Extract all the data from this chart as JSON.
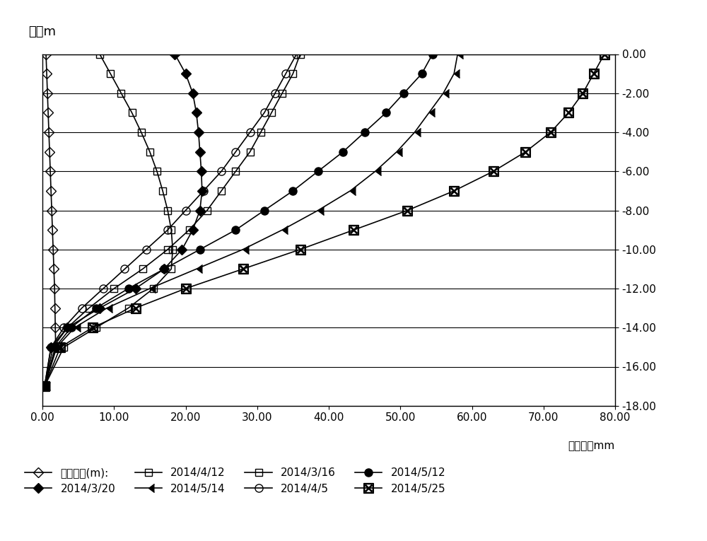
{
  "ylabel_left": "深度m",
  "xlabel": "相对位移mm",
  "ylim": [
    -18.0,
    0.0
  ],
  "xlim": [
    0.0,
    80.0
  ],
  "yticks": [
    0.0,
    -2.0,
    -4.0,
    -6.0,
    -8.0,
    -10.0,
    -12.0,
    -14.0,
    -16.0,
    -18.0
  ],
  "xticks": [
    0.0,
    10.0,
    20.0,
    30.0,
    40.0,
    50.0,
    60.0,
    70.0,
    80.0
  ],
  "depth": [
    0,
    -1,
    -2,
    -3,
    -4,
    -5,
    -6,
    -7,
    -8,
    -9,
    -10,
    -11,
    -12,
    -13,
    -14,
    -15,
    -17
  ],
  "series": [
    {
      "label": "初始变形(m):",
      "marker": "D",
      "mfc": "none",
      "msize": 7,
      "disp": [
        0.5,
        0.6,
        0.7,
        0.8,
        0.9,
        1.0,
        1.1,
        1.2,
        1.3,
        1.4,
        1.5,
        1.6,
        1.7,
        1.75,
        1.8,
        1.85,
        0.3
      ]
    },
    {
      "label": "2014/3/16",
      "marker": "s",
      "mfc": "none",
      "msize": 7,
      "disp": [
        8.0,
        9.5,
        11.0,
        12.5,
        13.8,
        15.0,
        16.0,
        16.8,
        17.5,
        18.0,
        18.2,
        18.0,
        15.5,
        12.0,
        7.5,
        3.0,
        0.3
      ]
    },
    {
      "label": "2014/3/20",
      "marker": "D",
      "mfc": "black",
      "msize": 7,
      "disp": [
        18.5,
        20.0,
        21.0,
        21.5,
        21.8,
        22.0,
        22.2,
        22.3,
        22.0,
        21.0,
        19.5,
        17.0,
        13.0,
        8.0,
        3.5,
        1.2,
        0.3
      ]
    },
    {
      "label": "2014/4/5",
      "marker": "o",
      "mfc": "none",
      "msize": 8,
      "disp": [
        35.5,
        34.0,
        32.5,
        31.0,
        29.0,
        27.0,
        25.0,
        22.5,
        20.0,
        17.5,
        14.5,
        11.5,
        8.5,
        5.5,
        3.0,
        1.2,
        0.3
      ]
    },
    {
      "label": "2014/4/12",
      "marker": "s",
      "mfc": "none",
      "msize": 7,
      "disp": [
        36.0,
        35.0,
        33.5,
        32.0,
        30.5,
        29.0,
        27.0,
        25.0,
        23.0,
        20.5,
        17.5,
        14.0,
        10.0,
        6.5,
        3.5,
        1.5,
        0.3
      ]
    },
    {
      "label": "2014/5/12",
      "marker": "o",
      "mfc": "black",
      "msize": 8,
      "disp": [
        54.5,
        53.0,
        50.5,
        48.0,
        45.0,
        42.0,
        38.5,
        35.0,
        31.0,
        27.0,
        22.0,
        17.0,
        12.0,
        7.5,
        4.0,
        1.8,
        0.3
      ]
    },
    {
      "label": "2014/5/14",
      "marker": "tick",
      "mfc": "black",
      "msize": 8,
      "disp": [
        58.0,
        57.5,
        56.0,
        54.0,
        52.0,
        49.5,
        46.5,
        43.0,
        38.5,
        33.5,
        28.0,
        21.5,
        15.0,
        9.0,
        4.5,
        2.0,
        0.3
      ]
    },
    {
      "label": "2014/5/25",
      "marker": "boxx",
      "mfc": "black",
      "msize": 10,
      "disp": [
        78.5,
        77.0,
        75.5,
        73.5,
        71.0,
        67.5,
        63.0,
        57.5,
        51.0,
        43.5,
        36.0,
        28.0,
        20.0,
        13.0,
        7.0,
        2.5,
        0.3
      ]
    }
  ],
  "legend_order": [
    "初始变形(m):",
    "2014/3/20",
    "2014/4/12",
    "2014/5/14",
    "2014/3/16",
    "2014/4/5",
    "2014/5/12",
    "2014/5/25"
  ]
}
